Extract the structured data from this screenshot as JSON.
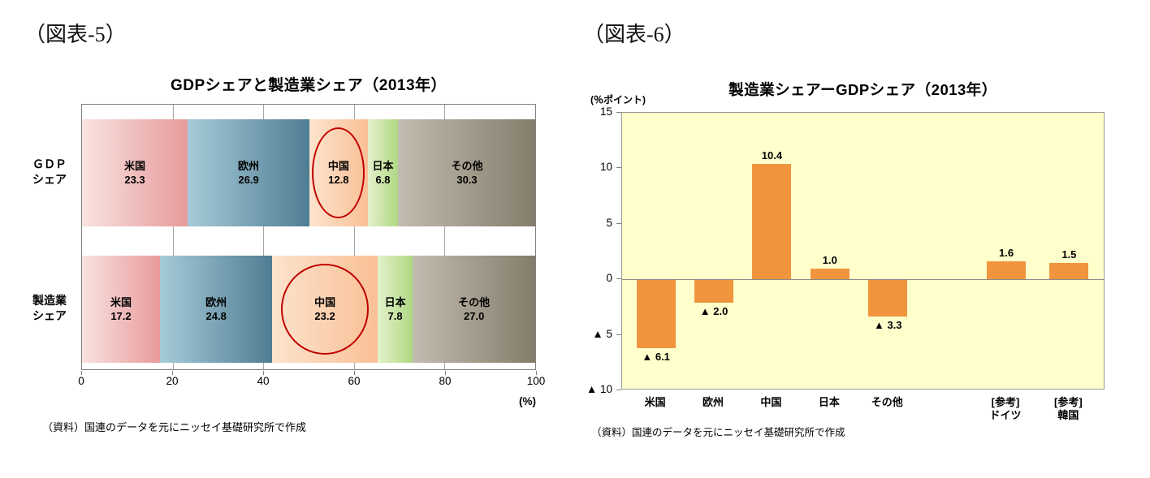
{
  "chart_data": [
    {
      "type": "bar",
      "orientation": "horizontal-stacked",
      "fig_label": "（図表-5）",
      "title": "GDPシェアと製造業シェア（2013年）",
      "row_labels": [
        [
          "ＧＤＰ",
          "シェア"
        ],
        [
          "製造業",
          "シェア"
        ]
      ],
      "segments": [
        "米国",
        "欧州",
        "中国",
        "日本",
        "その他"
      ],
      "segment_keys": [
        "usa",
        "europe",
        "china",
        "japan",
        "others"
      ],
      "series": [
        {
          "name": "GDPシェア",
          "key": "gdp",
          "values": [
            23.3,
            26.9,
            12.8,
            6.8,
            30.3
          ]
        },
        {
          "name": "製造業シェア",
          "key": "manufacturing",
          "values": [
            17.2,
            24.8,
            23.2,
            7.8,
            27.0
          ]
        }
      ],
      "xlim": [
        0,
        100
      ],
      "xticks": [
        0,
        20,
        40,
        60,
        80,
        100
      ],
      "x_unit": "(%)",
      "grid": true,
      "highlight_segment": "中国",
      "highlight_color": "#c00000",
      "segment_gradients": [
        [
          "#f9e3e0",
          "#e79a9b"
        ],
        [
          "#a6cbd8",
          "#4f7d93"
        ],
        [
          "#fde3cd",
          "#f9c096"
        ],
        [
          "#e3f1cb",
          "#b0d883"
        ],
        [
          "#c2bcb0",
          "#847c6a"
        ]
      ],
      "source": "（資料）国連のデータを元にニッセイ基礎研究所で作成"
    },
    {
      "type": "bar",
      "orientation": "vertical",
      "fig_label": "（図表-6）",
      "title": "製造業シェアーGDPシェア（2013年）",
      "unit_label": "(％ポイント)",
      "categories": [
        "米国",
        "欧州",
        "中国",
        "日本",
        "その他",
        "[参考]\nドイツ",
        "[参考]\n韓国"
      ],
      "category_keys": [
        "usa",
        "europe",
        "china",
        "japan",
        "others",
        "germany-ref",
        "korea-ref"
      ],
      "values": [
        -6.1,
        -2.0,
        10.4,
        1.0,
        -3.3,
        1.6,
        1.5
      ],
      "bar_labels": [
        "▲ 6.1",
        "▲ 2.0",
        "10.4",
        "1.0",
        "▲ 3.3",
        "1.6",
        "1.5"
      ],
      "ylim": [
        -10,
        15
      ],
      "yticks": [
        15,
        10,
        5,
        0,
        -5,
        -10
      ],
      "ytick_labels": [
        "15",
        "10",
        "5",
        "0",
        "▲ 5",
        "▲ 10"
      ],
      "grid": false,
      "legend": "none",
      "bar_color": "#f0953e",
      "plot_bg": "#ffffcc",
      "x_centers_pct": [
        7,
        19,
        31,
        43,
        55,
        79.5,
        92.5
      ],
      "source": "（資料）国連のデータを元にニッセイ基礎研究所で作成"
    }
  ]
}
